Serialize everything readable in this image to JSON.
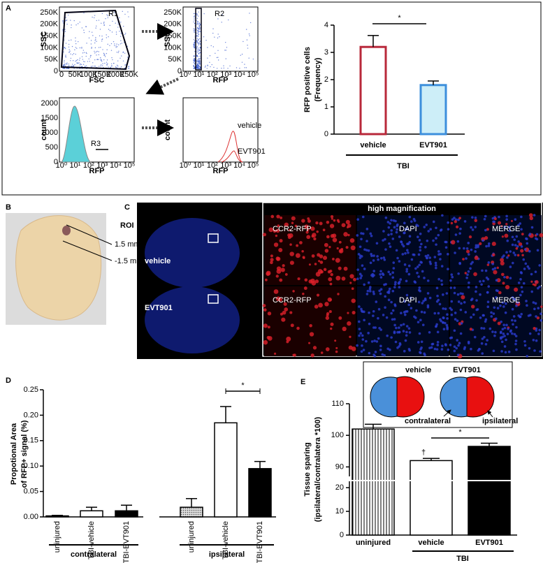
{
  "panel_labels": [
    "A",
    "B",
    "C",
    "D",
    "E"
  ],
  "flow_plots": [
    {
      "xlabel": "FSC",
      "ylabel": "SSC",
      "gate": "R1",
      "xticks": [
        "0",
        "50K",
        "100K",
        "150K",
        "200K",
        "250K"
      ],
      "yticks": [
        "0",
        "50K",
        "100K",
        "150K",
        "200K",
        "250K"
      ]
    },
    {
      "xlabel": "RFP",
      "ylabel": "SSC",
      "gate": "R2",
      "xticks": [
        "10⁰",
        "10¹",
        "10²",
        "10³",
        "10⁴",
        "10⁵"
      ],
      "yticks": [
        "0",
        "50K",
        "100K",
        "150K",
        "200K",
        "250K"
      ]
    },
    {
      "xlabel": "RFP",
      "ylabel": "count",
      "gate": "R3",
      "xticks": [
        "10⁰",
        "10¹",
        "10²",
        "10³",
        "10⁴",
        "10⁵"
      ],
      "yticks": [
        "0",
        "500",
        "1000",
        "1500",
        "2000"
      ]
    },
    {
      "xlabel": "RFP",
      "ylabel": "count",
      "xticks": [
        "10⁰",
        "10¹",
        "10²",
        "10³",
        "10⁴",
        "10⁵"
      ],
      "curves": [
        "vehicle",
        "EVT901"
      ]
    }
  ],
  "panel_b": {
    "roi": "ROI",
    "levels": [
      "1.5 mm",
      "-1.5 mm"
    ]
  },
  "panel_c": {
    "header": "high magnification",
    "rows": [
      "vehicle",
      "EVT901"
    ],
    "channels": [
      "CCR2-RFP",
      "DAPI",
      "MERGE"
    ]
  },
  "chart_data": [
    {
      "type": "bar",
      "ylabel": [
        "RFP positive cells",
        "(Frequency)"
      ],
      "categories": [
        "vehicle",
        "EVT901"
      ],
      "values": [
        3.2,
        1.8
      ],
      "errors": [
        0.42,
        0.15
      ],
      "fills": [
        "#ffffff",
        "#cdeef8"
      ],
      "edge_colors": [
        "#b8283a",
        "#3d8fdc"
      ],
      "ylim": [
        0,
        4
      ],
      "yticks": [
        0,
        1,
        2,
        3,
        4
      ],
      "group": "TBI",
      "significance": "*"
    },
    {
      "type": "grouped-bar",
      "ylabel": [
        "Propotional Area",
        "of RFP+ signal (%)"
      ],
      "groups": [
        {
          "name": "contralateral",
          "categories": [
            "uninjured",
            "TBI-vehicle",
            "TBI-EVT901"
          ],
          "values": [
            0.002,
            0.012,
            0.012
          ],
          "errors": [
            0.001,
            0.007,
            0.011
          ]
        },
        {
          "name": "ipsilateral",
          "categories": [
            "uninjured",
            "TBI-vehicle",
            "TBI-EVT901"
          ],
          "values": [
            0.019,
            0.185,
            0.095
          ],
          "errors": [
            0.017,
            0.032,
            0.014
          ]
        }
      ],
      "fills": [
        "dots",
        "#ffffff",
        "#000000"
      ],
      "ylim": [
        0,
        0.25
      ],
      "yticks": [
        {
          "value": 0,
          "label": "0.00"
        },
        {
          "value": 0.05,
          "label": "0.05"
        },
        {
          "value": 0.1,
          "label": "0.10"
        },
        {
          "value": 0.15,
          "label": "0.15"
        },
        {
          "value": 0.2,
          "label": "0.20"
        },
        {
          "value": 0.25,
          "label": "0.25"
        }
      ],
      "significance": "*"
    },
    {
      "type": "broken-bar",
      "ylabel": [
        "Tissue sparing",
        "(ipsilateral/contralatera *100)"
      ],
      "categories": [
        "uninjured",
        "vehicle",
        "EVT901"
      ],
      "values": [
        102,
        92,
        96.5
      ],
      "errors": [
        1.5,
        0.7,
        1.0
      ],
      "fills": [
        "stripes",
        "#ffffff",
        "#000000"
      ],
      "ylim": [
        0,
        110
      ],
      "ybreak": [
        23,
        87
      ],
      "yticks": [
        0,
        10,
        20,
        90,
        100,
        110
      ],
      "group": "TBI",
      "dagger": "†",
      "significance": "*",
      "inset": {
        "labels": [
          "vehicle",
          "EVT901"
        ],
        "sides": [
          "contralateral",
          "ipsilateral"
        ]
      }
    }
  ]
}
